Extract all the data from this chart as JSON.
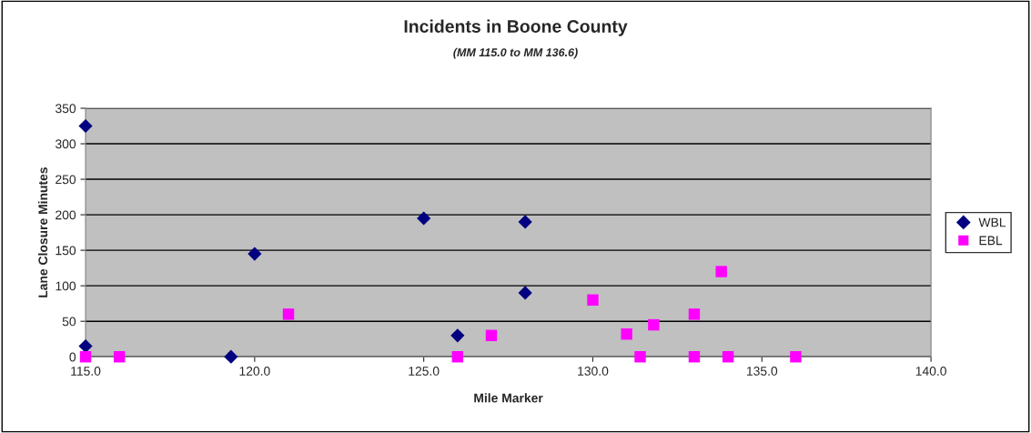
{
  "chart_data": {
    "type": "scatter",
    "title": "Incidents in Boone County",
    "subtitle": "(MM 115.0 to MM 136.6)",
    "xlabel": "Mile Marker",
    "ylabel": "Lane Closure Minutes",
    "xlim": [
      115,
      140
    ],
    "xticks": [
      {
        "value": 115,
        "label": "115.0"
      },
      {
        "value": 120,
        "label": "120.0"
      },
      {
        "value": 125,
        "label": "125.0"
      },
      {
        "value": 130,
        "label": "130.0"
      },
      {
        "value": 135,
        "label": "135.0"
      },
      {
        "value": 140,
        "label": "140.0"
      }
    ],
    "ylim": [
      0,
      350
    ],
    "yticks": [
      0,
      50,
      100,
      150,
      200,
      250,
      300,
      350
    ],
    "grid": "y",
    "legend": "right",
    "series": [
      {
        "name": "WBL",
        "color": "#000080",
        "marker": "diamond",
        "x": [
          115,
          115,
          119.3,
          120,
          125,
          126,
          128,
          128
        ],
        "values": [
          325,
          15,
          0,
          145,
          195,
          30,
          190,
          90
        ]
      },
      {
        "name": "EBL",
        "color": "#ff00ff",
        "marker": "square",
        "x": [
          115,
          116,
          121,
          126,
          127,
          130,
          131,
          131.4,
          131.8,
          133,
          133,
          133.8,
          134,
          136
        ],
        "values": [
          0,
          0,
          60,
          0,
          30,
          80,
          32,
          0,
          45,
          60,
          0,
          120,
          0,
          0
        ]
      }
    ]
  }
}
